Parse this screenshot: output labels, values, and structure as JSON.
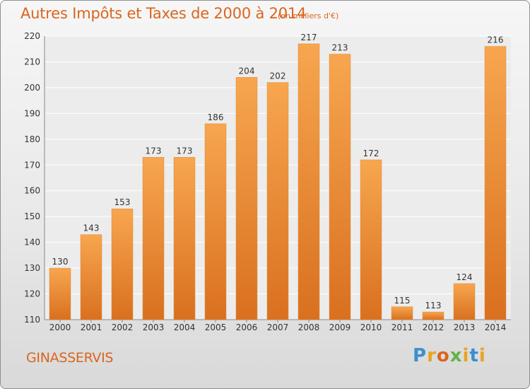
{
  "header": {
    "title": "Autres Impôts et Taxes de 2000 à 2014",
    "subtitle": "(en milliers d'€)"
  },
  "footer": {
    "commune": "GINASSERVIS",
    "logo_text": "Proxiti"
  },
  "colors": {
    "bar_light": "#f7a64f",
    "bar_dark": "#d9701f",
    "text_accent": "#d9661f"
  },
  "chart_data": {
    "type": "bar",
    "title": "Autres Impôts et Taxes de 2000 à 2014",
    "subtitle": "(en milliers d'€)",
    "categories": [
      "2000",
      "2001",
      "2002",
      "2003",
      "2004",
      "2005",
      "2006",
      "2007",
      "2008",
      "2009",
      "2010",
      "2011",
      "2012",
      "2013",
      "2014"
    ],
    "values": [
      130,
      143,
      153,
      173,
      173,
      186,
      204,
      202,
      217,
      213,
      172,
      115,
      113,
      124,
      216
    ],
    "xlabel": "",
    "ylabel": "",
    "ylim": [
      110,
      220
    ],
    "yticks": [
      110,
      120,
      130,
      140,
      150,
      160,
      170,
      180,
      190,
      200,
      210,
      220
    ],
    "grid": true,
    "legend": "none"
  }
}
